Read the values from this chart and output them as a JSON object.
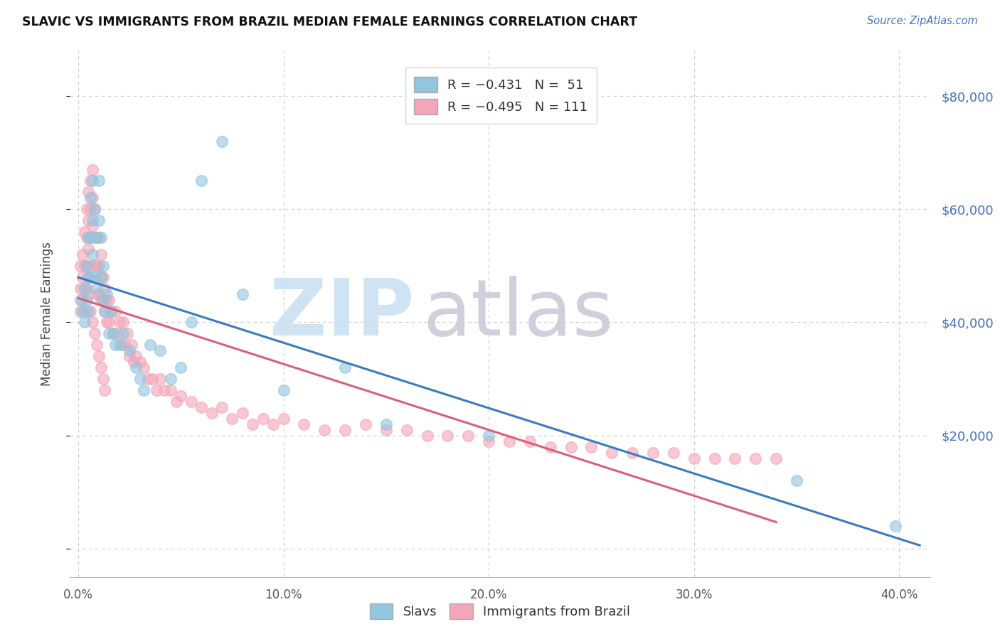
{
  "title": "SLAVIC VS IMMIGRANTS FROM BRAZIL MEDIAN FEMALE EARNINGS CORRELATION CHART",
  "source": "Source: ZipAtlas.com",
  "xlabel_ticks": [
    "0.0%",
    "10.0%",
    "20.0%",
    "30.0%",
    "40.0%"
  ],
  "xlabel_vals": [
    0.0,
    0.1,
    0.2,
    0.3,
    0.4
  ],
  "ylabel": "Median Female Earnings",
  "right_ytick_vals": [
    20000,
    40000,
    60000,
    80000
  ],
  "right_ytick_labels": [
    "$20,000",
    "$40,000",
    "$60,000",
    "$80,000"
  ],
  "legend_blue_label": "R = -0.431   N =  51",
  "legend_pink_label": "R = -0.495   N = 111",
  "blue_color": "#92c5de",
  "pink_color": "#f4a6b8",
  "blue_line_color": "#3a7bbf",
  "pink_line_color": "#d95f7a",
  "background_color": "#ffffff",
  "grid_color": "#cccccc",
  "xlim": [
    -0.004,
    0.415
  ],
  "ylim": [
    -5000,
    88000
  ],
  "figsize": [
    14.06,
    8.92
  ],
  "dpi": 100,
  "slavs_x": [
    0.001,
    0.002,
    0.003,
    0.003,
    0.004,
    0.004,
    0.005,
    0.005,
    0.005,
    0.006,
    0.006,
    0.006,
    0.007,
    0.007,
    0.007,
    0.008,
    0.008,
    0.009,
    0.009,
    0.01,
    0.01,
    0.011,
    0.011,
    0.012,
    0.012,
    0.013,
    0.014,
    0.015,
    0.016,
    0.017,
    0.018,
    0.02,
    0.022,
    0.025,
    0.028,
    0.03,
    0.032,
    0.035,
    0.04,
    0.045,
    0.05,
    0.055,
    0.06,
    0.07,
    0.08,
    0.1,
    0.13,
    0.15,
    0.2,
    0.35,
    0.398
  ],
  "slavs_y": [
    44000,
    42000,
    46000,
    40000,
    50000,
    44000,
    55000,
    48000,
    42000,
    62000,
    55000,
    48000,
    65000,
    58000,
    52000,
    60000,
    48000,
    55000,
    46000,
    65000,
    58000,
    55000,
    48000,
    50000,
    44000,
    42000,
    45000,
    38000,
    42000,
    38000,
    36000,
    36000,
    38000,
    35000,
    32000,
    30000,
    28000,
    36000,
    35000,
    30000,
    32000,
    40000,
    65000,
    72000,
    45000,
    28000,
    32000,
    22000,
    20000,
    12000,
    4000
  ],
  "brazil_x": [
    0.001,
    0.001,
    0.001,
    0.002,
    0.002,
    0.002,
    0.003,
    0.003,
    0.003,
    0.003,
    0.004,
    0.004,
    0.004,
    0.004,
    0.005,
    0.005,
    0.005,
    0.005,
    0.006,
    0.006,
    0.006,
    0.006,
    0.007,
    0.007,
    0.007,
    0.008,
    0.008,
    0.008,
    0.009,
    0.009,
    0.009,
    0.01,
    0.01,
    0.01,
    0.011,
    0.011,
    0.011,
    0.012,
    0.012,
    0.013,
    0.013,
    0.014,
    0.014,
    0.015,
    0.015,
    0.016,
    0.017,
    0.018,
    0.019,
    0.02,
    0.021,
    0.022,
    0.023,
    0.024,
    0.025,
    0.026,
    0.027,
    0.028,
    0.03,
    0.032,
    0.034,
    0.036,
    0.038,
    0.04,
    0.042,
    0.045,
    0.048,
    0.05,
    0.055,
    0.06,
    0.065,
    0.07,
    0.075,
    0.08,
    0.085,
    0.09,
    0.095,
    0.1,
    0.11,
    0.12,
    0.13,
    0.14,
    0.15,
    0.16,
    0.17,
    0.18,
    0.19,
    0.2,
    0.21,
    0.22,
    0.23,
    0.24,
    0.25,
    0.26,
    0.27,
    0.28,
    0.29,
    0.3,
    0.31,
    0.32,
    0.33,
    0.34,
    0.005,
    0.006,
    0.007,
    0.008,
    0.009,
    0.01,
    0.011,
    0.012,
    0.013
  ],
  "brazil_y": [
    50000,
    46000,
    42000,
    52000,
    48000,
    44000,
    56000,
    50000,
    46000,
    42000,
    60000,
    55000,
    50000,
    46000,
    63000,
    58000,
    53000,
    48000,
    65000,
    60000,
    55000,
    50000,
    67000,
    62000,
    57000,
    60000,
    55000,
    50000,
    55000,
    50000,
    45000,
    55000,
    50000,
    45000,
    52000,
    48000,
    44000,
    48000,
    44000,
    46000,
    42000,
    44000,
    40000,
    44000,
    40000,
    42000,
    38000,
    42000,
    38000,
    40000,
    36000,
    40000,
    36000,
    38000,
    34000,
    36000,
    33000,
    34000,
    33000,
    32000,
    30000,
    30000,
    28000,
    30000,
    28000,
    28000,
    26000,
    27000,
    26000,
    25000,
    24000,
    25000,
    23000,
    24000,
    22000,
    23000,
    22000,
    23000,
    22000,
    21000,
    21000,
    22000,
    21000,
    21000,
    20000,
    20000,
    20000,
    19000,
    19000,
    19000,
    18000,
    18000,
    18000,
    17000,
    17000,
    17000,
    17000,
    16000,
    16000,
    16000,
    16000,
    16000,
    45000,
    42000,
    40000,
    38000,
    36000,
    34000,
    32000,
    30000,
    28000
  ]
}
